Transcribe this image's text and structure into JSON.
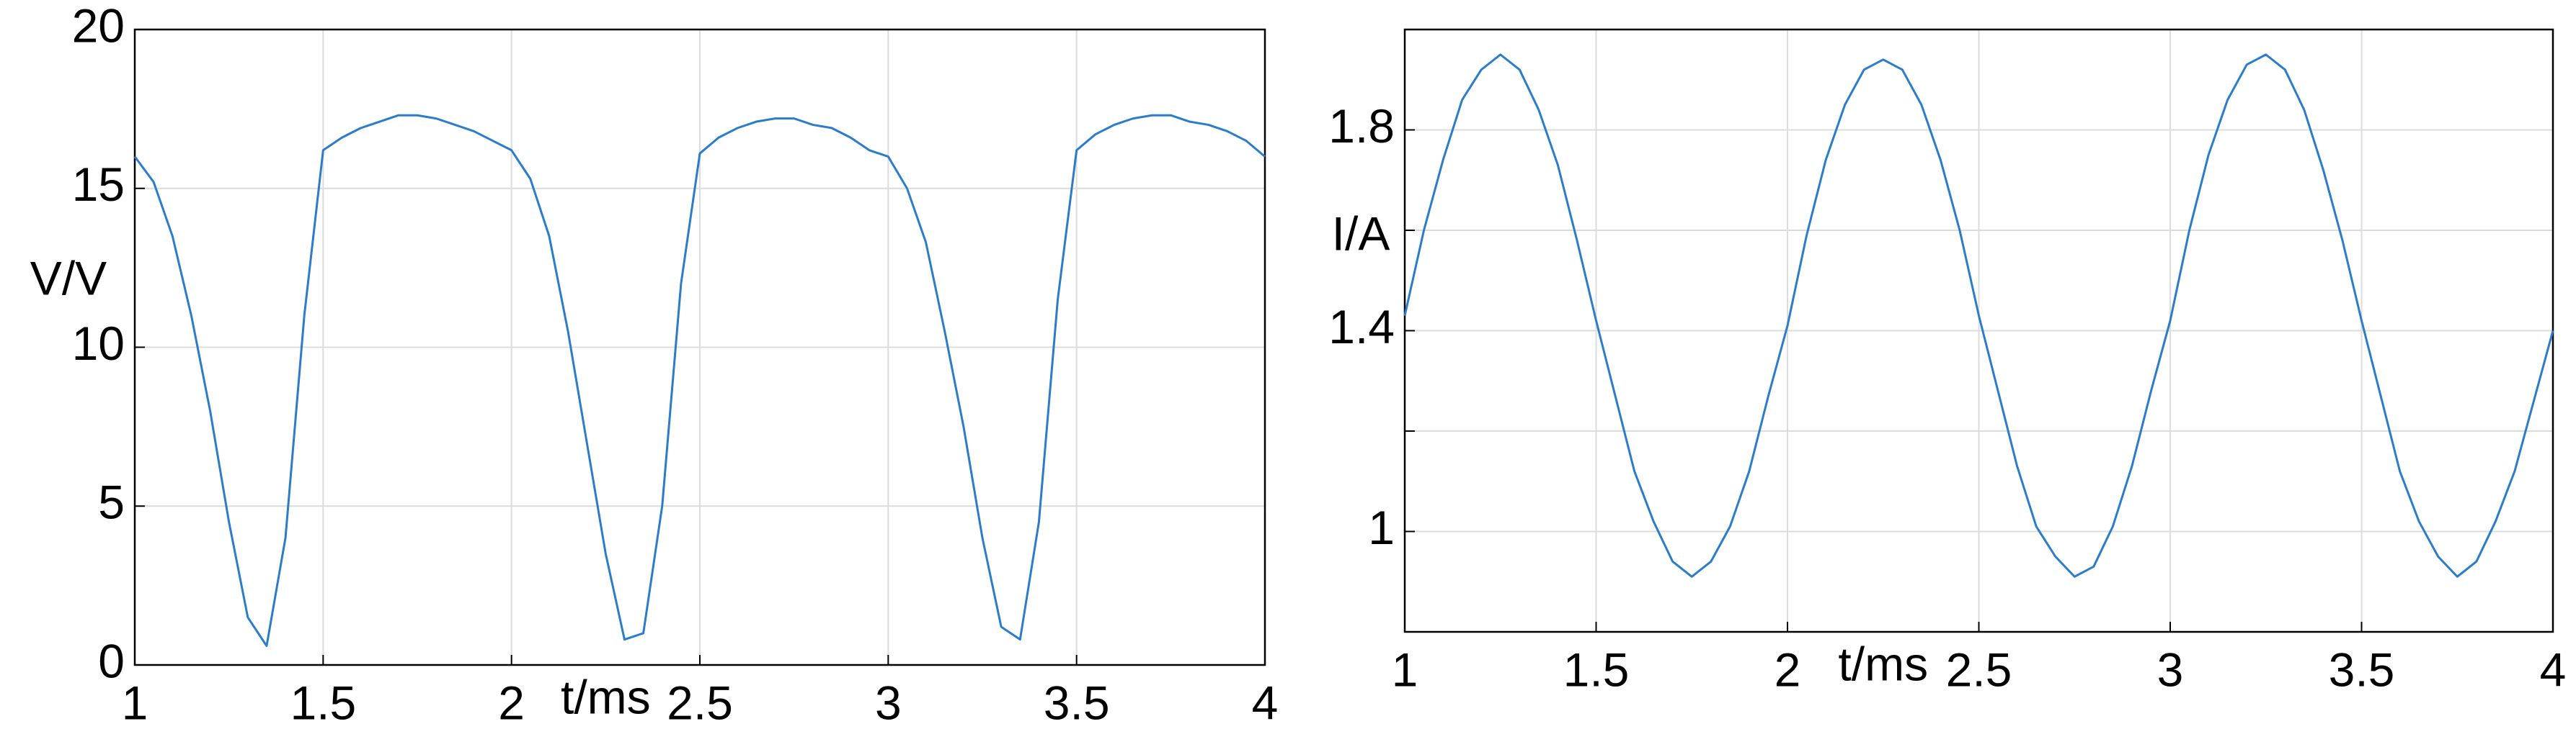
{
  "chart_data": [
    {
      "type": "line",
      "xlabel": "t/ms",
      "ylabel": "V/V",
      "x": [
        1,
        1.05,
        1.1,
        1.15,
        1.2,
        1.25,
        1.3,
        1.35,
        1.4,
        1.45,
        1.5,
        1.55,
        1.6,
        1.65,
        1.7,
        1.75,
        1.8,
        1.85,
        1.9,
        1.95,
        2,
        2.05,
        2.1,
        2.15,
        2.2,
        2.25,
        2.3,
        2.35,
        2.4,
        2.45,
        2.5,
        2.55,
        2.6,
        2.65,
        2.7,
        2.75,
        2.8,
        2.85,
        2.9,
        2.95,
        3,
        3.05,
        3.1,
        3.15,
        3.2,
        3.25,
        3.3,
        3.35,
        3.4,
        3.45,
        3.5,
        3.55,
        3.6,
        3.65,
        3.7,
        3.75,
        3.8,
        3.85,
        3.9,
        3.95,
        4
      ],
      "series": [
        {
          "color": "#2b7cc9",
          "values": [
            16,
            15.2,
            13.5,
            11,
            8,
            4.5,
            1.5,
            0.6,
            4,
            11,
            16.2,
            16.6,
            16.9,
            17.1,
            17.3,
            17.3,
            17.2,
            17,
            16.8,
            16.5,
            16.2,
            15.3,
            13.5,
            10.5,
            7,
            3.5,
            0.8,
            1,
            5,
            12,
            16.1,
            16.6,
            16.9,
            17.1,
            17.2,
            17.2,
            17,
            16.9,
            16.6,
            16.2,
            16,
            15,
            13.3,
            10.5,
            7.5,
            4,
            1.2,
            0.8,
            4.5,
            11.5,
            16.2,
            16.7,
            17,
            17.2,
            17.3,
            17.3,
            17.1,
            17,
            16.8,
            16.5,
            16
          ]
        }
      ],
      "xlim": [
        1,
        4
      ],
      "ylim": [
        0,
        20
      ],
      "xticks": [
        1,
        1.5,
        2,
        2.5,
        3,
        3.5,
        4
      ],
      "yticks": [
        0,
        5,
        10,
        15,
        20
      ],
      "grid": true
    },
    {
      "type": "line",
      "xlabel": "t/ms",
      "ylabel": "I/A",
      "x": [
        1,
        1.05,
        1.1,
        1.15,
        1.2,
        1.25,
        1.3,
        1.35,
        1.4,
        1.45,
        1.5,
        1.55,
        1.6,
        1.65,
        1.7,
        1.75,
        1.8,
        1.85,
        1.9,
        1.95,
        2,
        2.05,
        2.1,
        2.15,
        2.2,
        2.25,
        2.3,
        2.35,
        2.4,
        2.45,
        2.5,
        2.55,
        2.6,
        2.65,
        2.7,
        2.75,
        2.8,
        2.85,
        2.9,
        2.95,
        3,
        3.05,
        3.1,
        3.15,
        3.2,
        3.25,
        3.3,
        3.35,
        3.4,
        3.45,
        3.5,
        3.55,
        3.6,
        3.65,
        3.7,
        3.75,
        3.8,
        3.85,
        3.9,
        3.95,
        4
      ],
      "series": [
        {
          "color": "#2b7cc9",
          "values": [
            1.43,
            1.6,
            1.74,
            1.86,
            1.92,
            1.95,
            1.92,
            1.84,
            1.73,
            1.58,
            1.42,
            1.27,
            1.12,
            1.02,
            0.94,
            0.91,
            0.94,
            1.01,
            1.12,
            1.27,
            1.41,
            1.59,
            1.74,
            1.85,
            1.92,
            1.94,
            1.92,
            1.85,
            1.74,
            1.6,
            1.43,
            1.28,
            1.13,
            1.01,
            0.95,
            0.91,
            0.93,
            1.01,
            1.13,
            1.28,
            1.42,
            1.6,
            1.75,
            1.86,
            1.93,
            1.95,
            1.92,
            1.84,
            1.72,
            1.58,
            1.42,
            1.27,
            1.12,
            1.02,
            0.95,
            0.91,
            0.94,
            1.02,
            1.12,
            1.26,
            1.4
          ]
        }
      ],
      "xlim": [
        1,
        4
      ],
      "ylim": [
        0.8,
        2
      ],
      "xticks": [
        1,
        1.5,
        2,
        2.5,
        3,
        3.5,
        4
      ],
      "yticks": [
        1,
        {
          "value": 1.2,
          "label": null
        },
        1.4,
        {
          "value": 1.6,
          "label": null
        },
        1.8
      ],
      "grid": true
    }
  ]
}
